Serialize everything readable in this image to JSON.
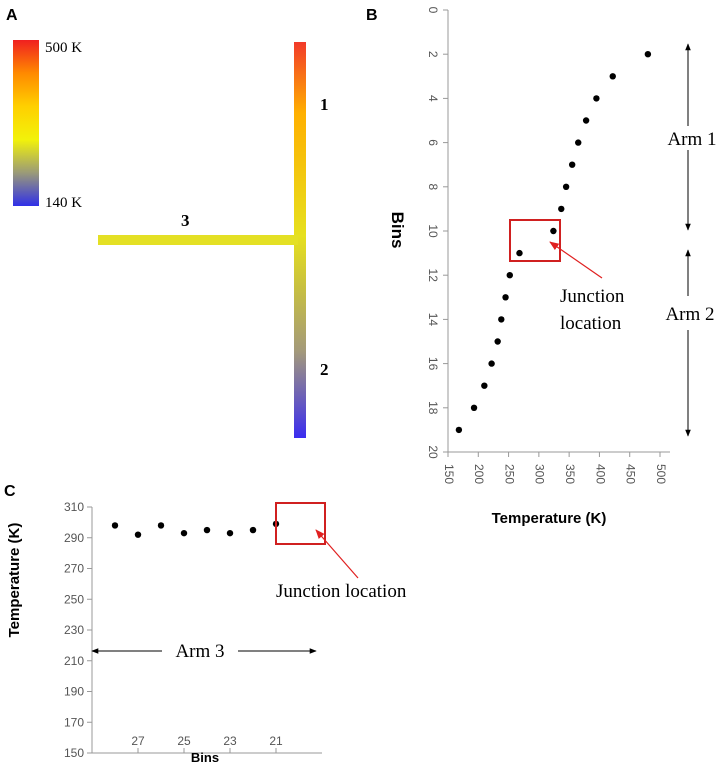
{
  "panel_a": {
    "label": "A",
    "colorbar": {
      "max_label": "500 K",
      "min_label": "140 K",
      "colors": [
        "#f02020",
        "#ff8a00",
        "#ffd000",
        "#f2f20a",
        "#9a9a78",
        "#3030e8"
      ]
    },
    "arm_labels": [
      "1",
      "2",
      "3"
    ],
    "colors": {
      "arm1_top": "#f23a2a",
      "arm1_mid": "#ffb000",
      "junction": "#e6e01e",
      "arm2_bottom": "#3a2cf0",
      "arm3": "#e4e024"
    }
  },
  "chart_data": [
    {
      "id": "B",
      "type": "scatter",
      "panel_label": "B",
      "xlabel": "Temperature (K)",
      "ylabel": "Bins",
      "xlim": [
        150,
        500
      ],
      "ylim": [
        0,
        20
      ],
      "xticks": [
        "150",
        "200",
        "250",
        "300",
        "350",
        "400",
        "450",
        "500"
      ],
      "yticks": [
        "0",
        "2",
        "4",
        "6",
        "8",
        "10",
        "12",
        "14",
        "16",
        "18",
        "20"
      ],
      "y_inverted": true,
      "points": [
        {
          "x": 480,
          "y": 2
        },
        {
          "x": 422,
          "y": 3
        },
        {
          "x": 395,
          "y": 4
        },
        {
          "x": 378,
          "y": 5
        },
        {
          "x": 365,
          "y": 6
        },
        {
          "x": 355,
          "y": 7
        },
        {
          "x": 345,
          "y": 8
        },
        {
          "x": 337,
          "y": 9
        },
        {
          "x": 324,
          "y": 10
        },
        {
          "x": 268,
          "y": 11
        },
        {
          "x": 252,
          "y": 12
        },
        {
          "x": 245,
          "y": 13
        },
        {
          "x": 238,
          "y": 14
        },
        {
          "x": 232,
          "y": 15
        },
        {
          "x": 222,
          "y": 16
        },
        {
          "x": 210,
          "y": 17
        },
        {
          "x": 193,
          "y": 18
        },
        {
          "x": 168,
          "y": 19
        }
      ],
      "annotations": {
        "junction": "Junction location",
        "junction_lines": [
          "Junction",
          "location"
        ],
        "arm1": "Arm 1",
        "arm2": "Arm 2"
      }
    },
    {
      "id": "C",
      "type": "scatter",
      "panel_label": "C",
      "xlabel": "Bins",
      "ylabel": "Temperature (K)",
      "xlim": [
        29,
        19
      ],
      "ylim": [
        150,
        310
      ],
      "xticks": [
        "27",
        "25",
        "23",
        "21"
      ],
      "yticks": [
        "150",
        "170",
        "190",
        "210",
        "230",
        "250",
        "270",
        "290",
        "310"
      ],
      "points": [
        {
          "x": 28,
          "y": 298
        },
        {
          "x": 27,
          "y": 292
        },
        {
          "x": 26,
          "y": 298
        },
        {
          "x": 25,
          "y": 293
        },
        {
          "x": 24,
          "y": 295
        },
        {
          "x": 23,
          "y": 293
        },
        {
          "x": 22,
          "y": 295
        },
        {
          "x": 21,
          "y": 299
        }
      ],
      "annotations": {
        "junction": "Junction location",
        "arm3": "Arm 3"
      }
    }
  ]
}
